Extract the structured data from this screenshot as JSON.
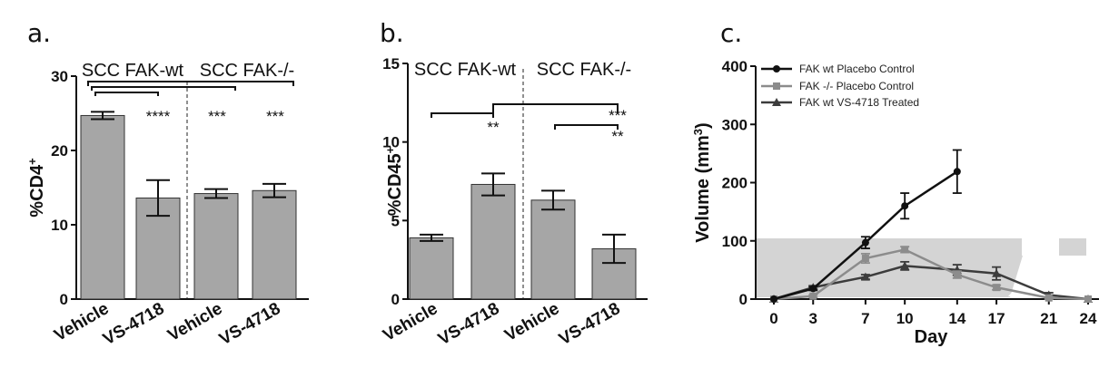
{
  "chart_data": [
    {
      "panel": "a.",
      "type": "bar",
      "ylabel_main": "%CD4",
      "ylabel_sup": "+",
      "ylim": [
        0,
        30
      ],
      "yticks": [
        "0",
        "10",
        "20",
        "30"
      ],
      "categories": [
        "Vehicle",
        "VS-4718",
        "Vehicle",
        "VS-4718"
      ],
      "values": [
        24.7,
        13.6,
        14.2,
        14.6
      ],
      "errors": [
        0.5,
        2.4,
        0.6,
        0.9
      ],
      "groups": [
        "SCC FAK-wt",
        "SCC FAK-/-"
      ],
      "significance": [
        "****",
        "***",
        "***"
      ],
      "bar_color": "#a6a6a6"
    },
    {
      "panel": "b.",
      "type": "bar",
      "ylabel_main": "%CD45",
      "ylabel_sup": "+",
      "ylim": [
        0,
        15
      ],
      "yticks": [
        "0",
        "5",
        "10",
        "15"
      ],
      "categories": [
        "Vehicle",
        "VS-4718",
        "Vehicle",
        "VS-4718"
      ],
      "values": [
        3.9,
        7.3,
        6.3,
        3.2
      ],
      "errors": [
        0.2,
        0.7,
        0.6,
        0.9
      ],
      "groups": [
        "SCC FAK-wt",
        "SCC FAK-/-"
      ],
      "significance": [
        "**",
        "***",
        "**"
      ],
      "bar_color": "#a6a6a6"
    },
    {
      "panel": "c.",
      "type": "line",
      "xlabel": "Day",
      "ylabel_main": "Volume (mm",
      "ylabel_sup": "3",
      "ylabel_end": ")",
      "xlim": [
        0,
        25
      ],
      "ylim": [
        0,
        400
      ],
      "xticks": [
        "0",
        "3",
        "7",
        "10",
        "14",
        "17",
        "21",
        "24"
      ],
      "yticks": [
        "0",
        "100",
        "200",
        "300",
        "400"
      ],
      "series": [
        {
          "name": "FAK wt Placebo Control",
          "color": "#111111",
          "marker": "circle",
          "x": [
            0,
            3,
            7,
            10,
            14
          ],
          "y": [
            0,
            18,
            97,
            160,
            219
          ],
          "err": [
            0,
            3,
            10,
            22,
            37
          ]
        },
        {
          "name": "FAK -/- Placebo Control",
          "color": "#8c8c8c",
          "marker": "square",
          "x": [
            0,
            3,
            7,
            10,
            14,
            17,
            21,
            24
          ],
          "y": [
            0,
            5,
            70,
            85,
            42,
            20,
            2,
            0
          ],
          "err": [
            0,
            2,
            8,
            5,
            6,
            4,
            2,
            0
          ]
        },
        {
          "name": "FAK wt VS-4718 Treated",
          "color": "#3c3c3c",
          "marker": "triangle",
          "x": [
            0,
            3,
            7,
            10,
            14,
            17,
            21,
            24
          ],
          "y": [
            0,
            20,
            38,
            57,
            50,
            44,
            7,
            0
          ],
          "err": [
            0,
            3,
            4,
            7,
            9,
            11,
            4,
            0
          ]
        }
      ],
      "legend_position": "top-left"
    }
  ]
}
